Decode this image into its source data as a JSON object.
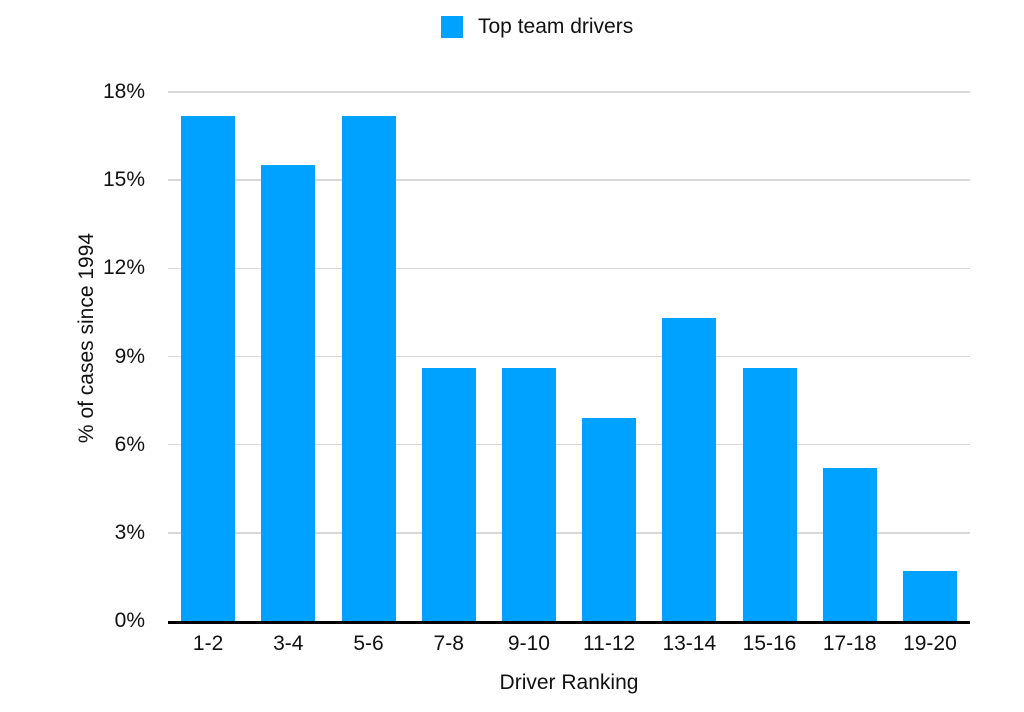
{
  "chart_data": {
    "type": "bar",
    "title": "",
    "categories": [
      "1-2",
      "3-4",
      "5-6",
      "7-8",
      "9-10",
      "11-12",
      "13-14",
      "15-16",
      "17-18",
      "19-20"
    ],
    "values": [
      17.2,
      15.5,
      17.2,
      8.6,
      8.6,
      6.9,
      10.3,
      8.6,
      5.2,
      1.7
    ],
    "xlabel": "Driver Ranking",
    "ylabel": "% of cases since 1994",
    "ylim": [
      0,
      18
    ],
    "ytick_values": [
      0,
      3,
      6,
      9,
      12,
      15,
      18
    ],
    "ytick_labels": [
      "0%",
      "3%",
      "6%",
      "9%",
      "12%",
      "15%",
      "18%"
    ],
    "grid": true,
    "legend_position": "top-center",
    "legend": [
      {
        "label": "Top team drivers",
        "color": "#00A2FF"
      }
    ],
    "colors": {
      "bar": "#00A2FF",
      "gridline": "#d8d8d8",
      "axis": "#000000",
      "text": "#111111",
      "background": "#ffffff"
    }
  }
}
